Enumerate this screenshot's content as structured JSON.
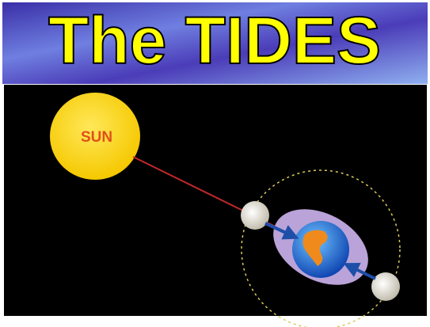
{
  "title": "The TIDES",
  "sun": {
    "label": "SUN"
  }
}
